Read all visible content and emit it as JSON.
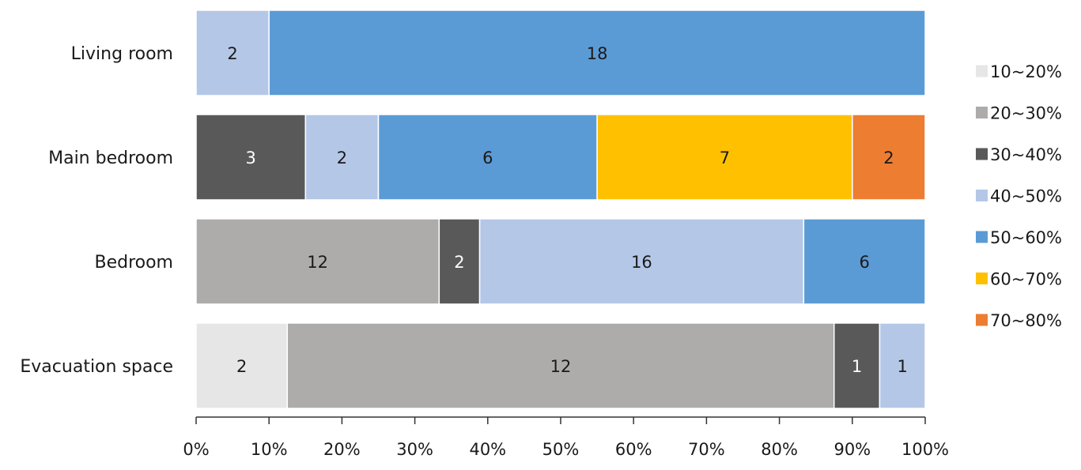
{
  "chart_data": {
    "type": "bar",
    "orientation": "horizontal",
    "stacked": "percent",
    "categories": [
      "Living room",
      "Main bedroom",
      "Bedroom",
      "Evacuation space"
    ],
    "series": [
      {
        "name": "10~20%",
        "color": "#E7E6E6",
        "values": [
          0,
          0,
          0,
          2
        ]
      },
      {
        "name": "20~30%",
        "color": "#AEABAB",
        "values": [
          0,
          0,
          12,
          12
        ]
      },
      {
        "name": "30~40%",
        "color": "#595959",
        "values": [
          0,
          3,
          2,
          1
        ]
      },
      {
        "name": "40~50%",
        "color": "#B4C7E7",
        "values": [
          2,
          2,
          16,
          1
        ]
      },
      {
        "name": "50~60%",
        "color": "#5B9BD5",
        "values": [
          18,
          6,
          6,
          0
        ]
      },
      {
        "name": "60~70%",
        "color": "#FFC000",
        "values": [
          0,
          7,
          0,
          0
        ]
      },
      {
        "name": "70~80%",
        "color": "#ED7D31",
        "values": [
          0,
          2,
          0,
          0
        ]
      }
    ],
    "x_ticks": [
      "0%",
      "10%",
      "20%",
      "30%",
      "40%",
      "50%",
      "60%",
      "70%",
      "80%",
      "90%",
      "100%"
    ],
    "xlim": [
      0,
      100
    ],
    "grid": false,
    "legend": "right",
    "title": "",
    "xlabel": "",
    "ylabel": ""
  }
}
